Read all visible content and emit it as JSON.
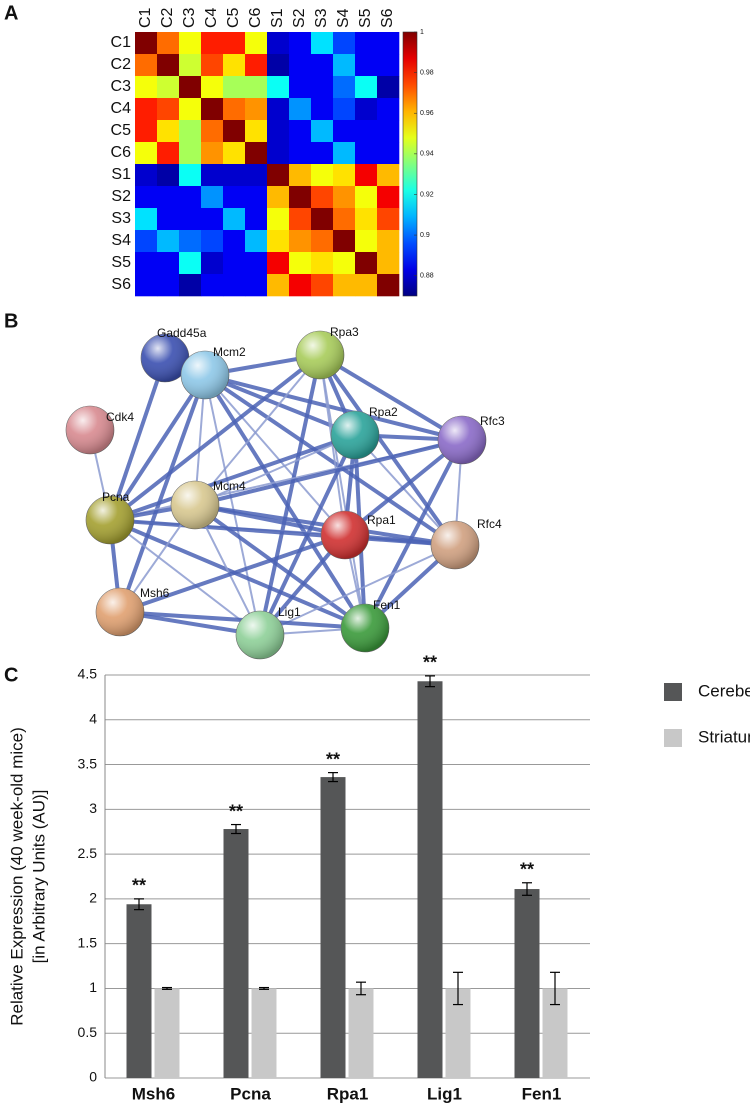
{
  "chart_data": [
    {
      "type": "heatmap",
      "panel_label": "A",
      "x_labels": [
        "C1",
        "C2",
        "C3",
        "C4",
        "C5",
        "C6",
        "S1",
        "S2",
        "S3",
        "S4",
        "S5",
        "S6"
      ],
      "y_labels": [
        "C1",
        "C2",
        "C3",
        "C4",
        "C5",
        "C6",
        "S1",
        "S2",
        "S3",
        "S4",
        "S5",
        "S6"
      ],
      "values": [
        [
          1,
          0.97,
          0.95,
          0.98,
          0.98,
          0.95,
          0.88,
          0.885,
          0.915,
          0.895,
          0.885,
          0.885
        ],
        [
          0.97,
          1,
          0.945,
          0.975,
          0.955,
          0.98,
          0.875,
          0.885,
          0.885,
          0.91,
          0.885,
          0.885
        ],
        [
          0.95,
          0.945,
          1,
          0.95,
          0.94,
          0.94,
          0.92,
          0.885,
          0.885,
          0.9,
          0.92,
          0.875
        ],
        [
          0.98,
          0.975,
          0.95,
          1,
          0.97,
          0.965,
          0.88,
          0.905,
          0.885,
          0.895,
          0.88,
          0.885
        ],
        [
          0.98,
          0.955,
          0.94,
          0.97,
          1,
          0.955,
          0.88,
          0.885,
          0.91,
          0.885,
          0.885,
          0.885
        ],
        [
          0.95,
          0.98,
          0.94,
          0.965,
          0.955,
          1,
          0.88,
          0.885,
          0.885,
          0.91,
          0.885,
          0.885
        ],
        [
          0.88,
          0.875,
          0.92,
          0.88,
          0.88,
          0.88,
          1,
          0.96,
          0.95,
          0.955,
          0.985,
          0.96
        ],
        [
          0.885,
          0.885,
          0.885,
          0.905,
          0.885,
          0.885,
          0.96,
          1,
          0.975,
          0.965,
          0.95,
          0.985
        ],
        [
          0.915,
          0.885,
          0.885,
          0.885,
          0.91,
          0.885,
          0.95,
          0.975,
          1,
          0.97,
          0.955,
          0.975
        ],
        [
          0.895,
          0.91,
          0.9,
          0.895,
          0.885,
          0.91,
          0.955,
          0.965,
          0.97,
          1,
          0.95,
          0.96
        ],
        [
          0.885,
          0.885,
          0.92,
          0.88,
          0.885,
          0.885,
          0.985,
          0.95,
          0.955,
          0.95,
          1,
          0.96
        ],
        [
          0.885,
          0.885,
          0.875,
          0.885,
          0.885,
          0.885,
          0.96,
          0.985,
          0.975,
          0.96,
          0.96,
          1
        ]
      ],
      "colormap": "jet",
      "clim": [
        0.87,
        1
      ],
      "cticks": [
        0.88,
        0.9,
        0.92,
        0.94,
        0.96,
        0.98,
        1
      ]
    },
    {
      "type": "network",
      "panel_label": "B",
      "nodes": [
        {
          "label": "Gadd45a",
          "color": "#3a4fb0"
        },
        {
          "label": "Mcm2",
          "color": "#8ec8e8"
        },
        {
          "label": "Rpa3",
          "color": "#a8cc5a"
        },
        {
          "label": "Cdk4",
          "color": "#d88a90"
        },
        {
          "label": "Rpa2",
          "color": "#2aa39a"
        },
        {
          "label": "Rfc3",
          "color": "#8a6ac8"
        },
        {
          "label": "Pcna",
          "color": "#a4a030"
        },
        {
          "label": "Mcm4",
          "color": "#d8c890"
        },
        {
          "label": "Rpa1",
          "color": "#d03030"
        },
        {
          "label": "Rfc4",
          "color": "#d0a080"
        },
        {
          "label": "Msh6",
          "color": "#e0a070"
        },
        {
          "label": "Lig1",
          "color": "#8ed098"
        },
        {
          "label": "Fen1",
          "color": "#3a9a3a"
        }
      ],
      "edges": [
        [
          3,
          6
        ],
        [
          0,
          6
        ],
        [
          1,
          6
        ],
        [
          1,
          7
        ],
        [
          1,
          2
        ],
        [
          1,
          4
        ],
        [
          1,
          8
        ],
        [
          1,
          5
        ],
        [
          1,
          9
        ],
        [
          1,
          11
        ],
        [
          1,
          12
        ],
        [
          1,
          10
        ],
        [
          2,
          7
        ],
        [
          2,
          6
        ],
        [
          2,
          4
        ],
        [
          2,
          8
        ],
        [
          2,
          5
        ],
        [
          2,
          9
        ],
        [
          2,
          12
        ],
        [
          2,
          11
        ],
        [
          4,
          6
        ],
        [
          4,
          7
        ],
        [
          4,
          8
        ],
        [
          4,
          5
        ],
        [
          4,
          9
        ],
        [
          4,
          12
        ],
        [
          4,
          11
        ],
        [
          5,
          6
        ],
        [
          5,
          7
        ],
        [
          5,
          8
        ],
        [
          5,
          9
        ],
        [
          5,
          12
        ],
        [
          6,
          7
        ],
        [
          6,
          8
        ],
        [
          6,
          9
        ],
        [
          6,
          10
        ],
        [
          6,
          11
        ],
        [
          6,
          12
        ],
        [
          7,
          8
        ],
        [
          7,
          11
        ],
        [
          7,
          12
        ],
        [
          7,
          9
        ],
        [
          7,
          10
        ],
        [
          8,
          9
        ],
        [
          8,
          11
        ],
        [
          8,
          12
        ],
        [
          8,
          10
        ],
        [
          9,
          12
        ],
        [
          9,
          11
        ],
        [
          10,
          11
        ],
        [
          10,
          12
        ],
        [
          11,
          12
        ]
      ]
    },
    {
      "type": "bar",
      "panel_label": "C",
      "categories": [
        "Msh6",
        "Pcna",
        "Rpa1",
        "Lig1",
        "Fen1"
      ],
      "series": [
        {
          "name": "Cerebellum",
          "color": "#555657",
          "values": [
            1.94,
            2.78,
            3.36,
            4.43,
            2.11
          ],
          "errors": [
            0.06,
            0.05,
            0.05,
            0.06,
            0.07
          ],
          "annotations": [
            "**",
            "**",
            "**",
            "**",
            "**"
          ]
        },
        {
          "name": "Striatum",
          "color": "#c8c8c8",
          "values": [
            1,
            1,
            1,
            1,
            1
          ],
          "errors": [
            0.01,
            0.01,
            0.07,
            0.18,
            0.18
          ]
        }
      ],
      "ylabel": [
        "Relative Expression (40 week-old mice)",
        "[in Arbitrary Units (AU)]"
      ],
      "ylim": [
        0,
        4.5
      ],
      "yticks": [
        0,
        0.5,
        1,
        1.5,
        2,
        2.5,
        3,
        3.5,
        4,
        4.5
      ],
      "grid": true,
      "legend": "right"
    }
  ]
}
